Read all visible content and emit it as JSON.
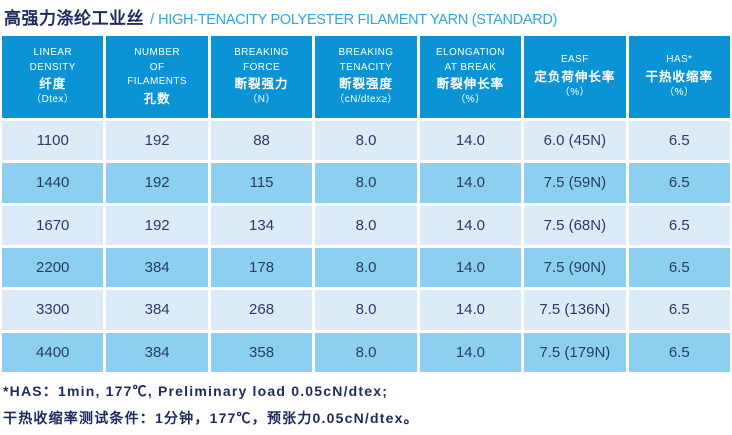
{
  "title": {
    "zh": "高强力涤纶工业丝",
    "sep": "/",
    "en": "HIGH-TENACITY POLYESTER FILAMENT YARN (STANDARD)"
  },
  "table": {
    "columns": [
      {
        "lines": [
          "LINEAR",
          "DENSITY",
          "纤度",
          "（Dtex）"
        ]
      },
      {
        "lines": [
          "NUMBER",
          "OF",
          "FILAMENTS",
          "孔数"
        ]
      },
      {
        "lines": [
          "BREAKING",
          "FORCE",
          "断裂强力",
          "（N）"
        ]
      },
      {
        "lines": [
          "BREAKING",
          "TENACITY",
          "断裂强度",
          "（cN/dtex≥）"
        ]
      },
      {
        "lines": [
          "ELONGATION",
          "AT BREAK",
          "断裂伸长率",
          "（%）"
        ]
      },
      {
        "lines": [
          "EASF",
          "定负荷伸长率",
          "（%）"
        ]
      },
      {
        "lines": [
          "HAS*",
          "干热收缩率",
          "（%）"
        ]
      }
    ],
    "rows": [
      [
        "1100",
        "192",
        "88",
        "8.0",
        "14.0",
        "6.0 (45N)",
        "6.5"
      ],
      [
        "1440",
        "192",
        "115",
        "8.0",
        "14.0",
        "7.5 (59N)",
        "6.5"
      ],
      [
        "1670",
        "192",
        "134",
        "8.0",
        "14.0",
        "7.5 (68N)",
        "6.5"
      ],
      [
        "2200",
        "384",
        "178",
        "8.0",
        "14.0",
        "7.5 (90N)",
        "6.5"
      ],
      [
        "3300",
        "384",
        "268",
        "8.0",
        "14.0",
        "7.5 (136N)",
        "6.5"
      ],
      [
        "4400",
        "384",
        "358",
        "8.0",
        "14.0",
        "7.5 (179N)",
        "6.5"
      ]
    ]
  },
  "footnotes": {
    "line1": "*HAS：1min, 177℃, Preliminary load 0.05cN/dtex;",
    "line2": "干热收缩率测试条件：1分钟，177℃，预张力0.05cN/dtex。"
  },
  "colors": {
    "header_bg": "#0a93d5",
    "row_light": "#dcebf7",
    "row_dark": "#8ccff1",
    "cell_text": "#2b3a6b",
    "title_navy": "#1e2b5e",
    "title_en_blue": "#2ea6da"
  }
}
